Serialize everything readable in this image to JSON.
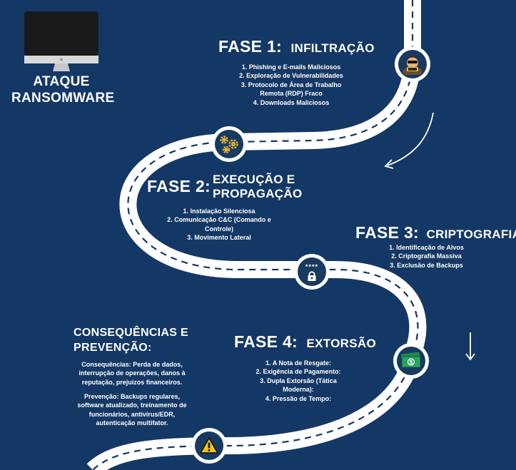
{
  "header": {
    "title_line1": "ATAQUE",
    "title_line2": "RANSOMWARE"
  },
  "phase1": {
    "label": "FASE 1:",
    "name": "INFILTRAÇÃO",
    "items": [
      "1. Phishing e E-mails Maliciosos",
      "2. Exploração de Vulnerabilidades",
      "3. Protocolo de Área de Trabalho",
      "Remota (RDP) Fraco",
      "4. Downloads Maliciosos"
    ]
  },
  "phase2": {
    "label": "FASE 2:",
    "name_line1": "EXECUÇÃO E",
    "name_line2": "PROPAGAÇÃO",
    "items": [
      "1. Instalação Silenciosa",
      "2. Comunicação C&C (Comando e",
      "Controle)",
      "3. Movimento Lateral"
    ]
  },
  "phase3": {
    "label": "FASE 3:",
    "name": "CRIPTOGRAFIA",
    "items": [
      "1. Identificação de Alvos",
      "2. Criptografia Massiva",
      "3. Exclusão de Backups"
    ],
    "password_mask": "****"
  },
  "phase4": {
    "label": "FASE 4:",
    "name": "EXTORSÃO",
    "items": [
      "1. A Nota de Resgate:",
      "2. Exigência de Pagamento:",
      "3. Dupla Extorsão (Tática",
      "Moderna):",
      "4. Pressão de Tempo:"
    ]
  },
  "consequences": {
    "title_line1": "CONSEQUÊNCIAS E",
    "title_line2": "PREVENÇÃO:",
    "consequences_lines": [
      "Consequências: Perda de dados,",
      "interrupção de operações, danos à",
      "reputação, prejuízos financeiros."
    ],
    "prevention_lines": [
      "Prevenção: Backups regulares,",
      "software atualizado, treinamento de",
      "funcionários, antivírus/EDR,",
      "autenticação multifator."
    ]
  },
  "icons": {
    "monitor": "monitor-icon",
    "hacker": "hacker-icon",
    "gears": "gears-icon",
    "password_lock": "password-lock-icon",
    "money": "money-icon",
    "warning": "warning-icon"
  },
  "colors": {
    "background": "#143865",
    "road": "#ffffff",
    "road_dash": "#143865",
    "gear": "#f2b632",
    "money": "#1f8a4c",
    "warning": "#f5c518"
  }
}
